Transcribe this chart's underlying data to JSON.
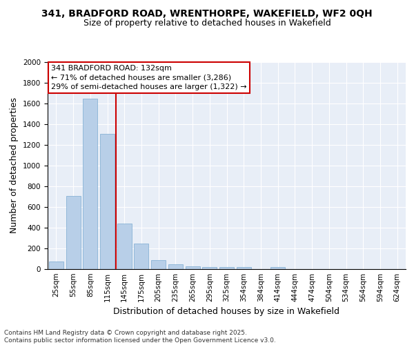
{
  "title_line1": "341, BRADFORD ROAD, WRENTHORPE, WAKEFIELD, WF2 0QH",
  "title_line2": "Size of property relative to detached houses in Wakefield",
  "xlabel": "Distribution of detached houses by size in Wakefield",
  "ylabel": "Number of detached properties",
  "categories": [
    "25sqm",
    "55sqm",
    "85sqm",
    "115sqm",
    "145sqm",
    "175sqm",
    "205sqm",
    "235sqm",
    "265sqm",
    "295sqm",
    "325sqm",
    "354sqm",
    "384sqm",
    "414sqm",
    "444sqm",
    "474sqm",
    "504sqm",
    "534sqm",
    "564sqm",
    "594sqm",
    "624sqm"
  ],
  "values": [
    75,
    710,
    1650,
    1310,
    440,
    250,
    90,
    50,
    30,
    20,
    20,
    20,
    0,
    20,
    0,
    0,
    0,
    0,
    0,
    0,
    0
  ],
  "bar_color": "#b8cfe8",
  "bar_edge_color": "#7aaad0",
  "vline_color": "#cc0000",
  "annotation_title": "341 BRADFORD ROAD: 132sqm",
  "annotation_line1": "← 71% of detached houses are smaller (3,286)",
  "annotation_line2": "29% of semi-detached houses are larger (1,322) →",
  "annotation_box_color": "#cc0000",
  "ylim": [
    0,
    2000
  ],
  "yticks": [
    0,
    200,
    400,
    600,
    800,
    1000,
    1200,
    1400,
    1600,
    1800,
    2000
  ],
  "background_color": "#e8eef7",
  "footer_line1": "Contains HM Land Registry data © Crown copyright and database right 2025.",
  "footer_line2": "Contains public sector information licensed under the Open Government Licence v3.0.",
  "title_fontsize": 10,
  "subtitle_fontsize": 9,
  "axis_label_fontsize": 9,
  "tick_fontsize": 7.5,
  "annotation_fontsize": 8,
  "footer_fontsize": 6.5
}
